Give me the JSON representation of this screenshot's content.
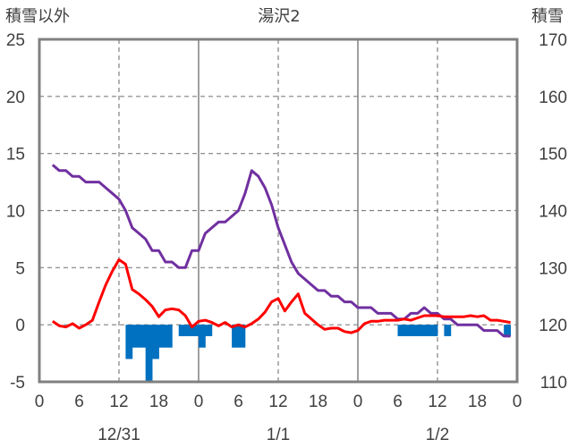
{
  "chart_data": {
    "type": "line",
    "title": "湯沢2",
    "left_axis_label": "積雪以外",
    "right_axis_label": "積雪",
    "left_ylim": [
      -5,
      25
    ],
    "left_yticks": [
      "25",
      "20",
      "15",
      "10",
      "5",
      "0",
      "-5"
    ],
    "right_ylim": [
      110,
      170
    ],
    "right_yticks": [
      "170",
      "160",
      "150",
      "140",
      "130",
      "120",
      "110"
    ],
    "x_range_hours": [
      0,
      72
    ],
    "x_tick_labels": [
      "0",
      "6",
      "12",
      "18",
      "0",
      "6",
      "12",
      "18",
      "0",
      "6",
      "12",
      "18",
      "0"
    ],
    "date_labels": [
      {
        "hour": 12,
        "label": "12/31"
      },
      {
        "hour": 36,
        "label": "1/1"
      },
      {
        "hour": 60,
        "label": "1/2"
      }
    ],
    "grid": {
      "dashed_hours": [
        12,
        36,
        60
      ],
      "solid_hours": [
        24,
        48
      ],
      "horizontal": true
    },
    "colors": {
      "snow_depth": "#7030A0",
      "temperature": "#FF0000",
      "precipitation": "#0070C0",
      "frame": "#808080"
    },
    "series": [
      {
        "key": "snow_depth",
        "axis": "right",
        "x": [
          2,
          3,
          4,
          5,
          6,
          7,
          8,
          9,
          10,
          11,
          12,
          13,
          14,
          15,
          16,
          17,
          18,
          19,
          20,
          21,
          22,
          23,
          24,
          25,
          26,
          27,
          28,
          29,
          30,
          31,
          32,
          33,
          34,
          35,
          36,
          37,
          38,
          39,
          40,
          41,
          42,
          43,
          44,
          45,
          46,
          47,
          48,
          49,
          50,
          51,
          52,
          53,
          54,
          55,
          56,
          57,
          58,
          59,
          60,
          61,
          62,
          63,
          64,
          65,
          66,
          67,
          68,
          69,
          70,
          71
        ],
        "values": [
          148,
          147,
          147,
          146,
          146,
          145,
          145,
          145,
          144,
          143,
          142,
          140,
          137,
          136,
          135,
          133,
          133,
          131,
          131,
          130,
          130,
          133,
          133,
          136,
          137,
          138,
          138,
          139,
          140,
          143,
          147,
          146,
          144,
          141,
          137,
          134,
          131,
          129,
          128,
          127,
          126,
          126,
          125,
          125,
          124,
          124,
          123,
          123,
          123,
          122,
          122,
          122,
          121,
          121,
          122,
          122,
          123,
          122,
          122,
          121,
          121,
          120,
          120,
          120,
          120,
          119,
          119,
          119,
          118,
          118
        ]
      },
      {
        "key": "temperature",
        "axis": "left",
        "x": [
          2,
          3,
          4,
          5,
          6,
          7,
          8,
          9,
          10,
          11,
          12,
          13,
          14,
          15,
          16,
          17,
          18,
          19,
          20,
          21,
          22,
          23,
          24,
          25,
          26,
          27,
          28,
          29,
          30,
          31,
          32,
          33,
          34,
          35,
          36,
          37,
          38,
          39,
          40,
          41,
          42,
          43,
          44,
          45,
          46,
          47,
          48,
          49,
          50,
          51,
          52,
          53,
          54,
          55,
          56,
          57,
          58,
          59,
          60,
          61,
          62,
          63,
          64,
          65,
          66,
          67,
          68,
          69,
          70,
          71
        ],
        "values": [
          0.3,
          -0.1,
          -0.2,
          0.1,
          -0.3,
          0.0,
          0.4,
          2.0,
          3.5,
          4.7,
          5.7,
          5.3,
          3.1,
          2.7,
          2.2,
          1.6,
          0.7,
          1.3,
          1.4,
          1.3,
          0.8,
          -0.2,
          0.3,
          0.4,
          0.2,
          -0.1,
          0.2,
          -0.2,
          0.0,
          -0.2,
          0.1,
          0.5,
          1.1,
          2.0,
          2.3,
          1.2,
          2.0,
          2.7,
          1.0,
          0.5,
          0.0,
          -0.4,
          -0.3,
          -0.3,
          -0.6,
          -0.7,
          -0.5,
          0.1,
          0.3,
          0.3,
          0.4,
          0.4,
          0.4,
          0.5,
          0.4,
          0.6,
          0.8,
          0.8,
          0.8,
          0.7,
          0.7,
          0.7,
          0.7,
          0.8,
          0.7,
          0.8,
          0.4,
          0.4,
          0.3,
          0.2
        ]
      },
      {
        "key": "precipitation",
        "axis": "left",
        "style": "bars",
        "x": [
          13,
          14,
          15,
          16,
          17,
          18,
          19,
          20,
          21,
          22,
          23,
          24,
          25,
          26,
          27,
          28,
          29,
          30,
          31,
          32,
          55,
          56,
          57,
          58,
          59,
          60,
          61,
          62,
          63,
          64,
          65,
          66,
          67,
          68,
          69,
          70,
          71
        ],
        "values": [
          0,
          -3,
          -2,
          -2,
          -5,
          -3,
          -2,
          -2,
          0,
          -1,
          -1,
          -1,
          -2,
          -1,
          0,
          0,
          0,
          -2,
          -2,
          0,
          -1,
          -1,
          -1,
          -1,
          -1,
          -1,
          0,
          -1,
          0,
          0,
          0,
          0,
          0,
          0,
          0,
          0,
          -1
        ]
      }
    ]
  }
}
